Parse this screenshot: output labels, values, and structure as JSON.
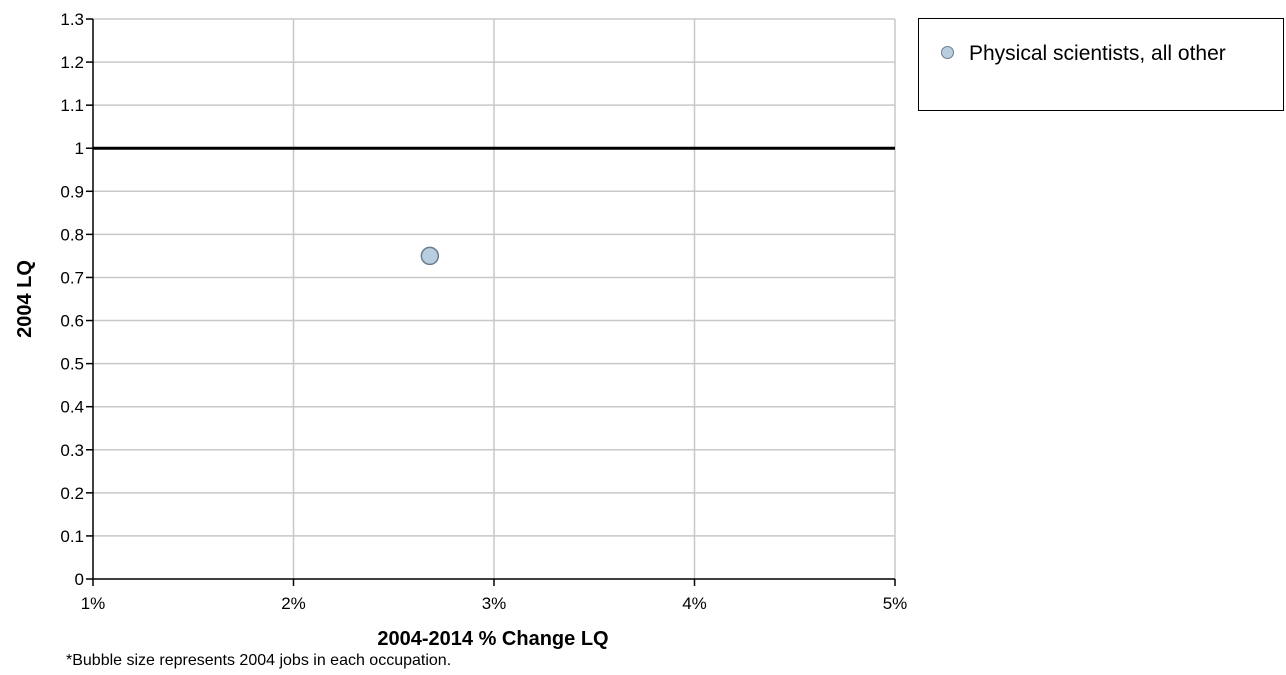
{
  "chart_data": {
    "type": "scatter",
    "xlabel": "2004-2014 % Change LQ",
    "ylabel": "2004 LQ",
    "xlim": [
      1,
      5
    ],
    "ylim": [
      0,
      1.3
    ],
    "x_ticks": [
      "1%",
      "2%",
      "3%",
      "4%",
      "5%"
    ],
    "y_ticks": [
      "0",
      "0.1",
      "0.2",
      "0.3",
      "0.4",
      "0.5",
      "0.6",
      "0.7",
      "0.8",
      "0.9",
      "1",
      "1.1",
      "1.2",
      "1.3"
    ],
    "grid": true,
    "reference_line_y": 1,
    "legend_position": "top-right",
    "footnote": "*Bubble size represents 2004 jobs in each occupation.",
    "series": [
      {
        "name": "Physical scientists, all other",
        "color": "#b8cde0",
        "points": [
          {
            "x": 2.68,
            "y": 0.75
          }
        ]
      }
    ]
  }
}
